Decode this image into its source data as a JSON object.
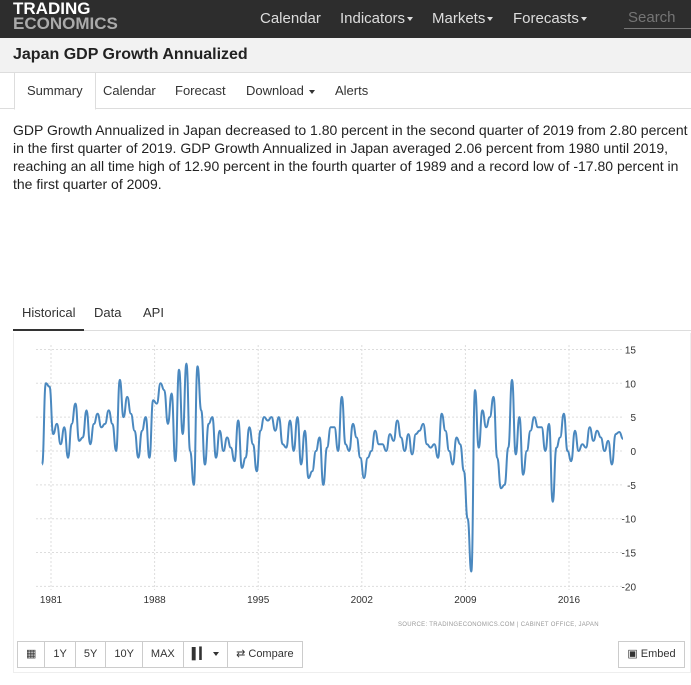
{
  "header": {
    "logo_line1": "TRADING",
    "logo_line2": "ECONOMICS",
    "nav": [
      "Calendar",
      "Indicators",
      "Markets",
      "Forecasts"
    ],
    "search_placeholder": "Search"
  },
  "page_title": "Japan GDP Growth Annualized",
  "tabs": [
    "Summary",
    "Calendar",
    "Forecast",
    "Download",
    "Alerts"
  ],
  "description": "GDP Growth Annualized in Japan decreased to 1.80 percent in the second quarter of 2019 from 2.80 percent in the first quarter of 2019. GDP Growth Annualized in Japan averaged 2.06 percent from 1980 until 2019, reaching an all time high of 12.90 percent in the fourth quarter of 1989 and a record low of -17.80 percent in the first quarter of 2009.",
  "subtabs": [
    "Historical",
    "Data",
    "API"
  ],
  "source": "SOURCE: TRADINGECONOMICS.COM | CABINET OFFICE, JAPAN",
  "buttons": {
    "y1": "1Y",
    "y5": "5Y",
    "y10": "10Y",
    "max": "MAX",
    "compare": "Compare",
    "embed": "Embed"
  },
  "colors": {
    "line": "#4a88bf",
    "topbar": "#2d2d2d"
  },
  "chart_data": {
    "type": "line",
    "title": "Japan GDP Growth Annualized",
    "start": "1980Q1",
    "frequency": "quarterly",
    "x_ticks": [
      "1981",
      "1988",
      "1995",
      "2002",
      "2009",
      "2016"
    ],
    "y_ticks": [
      15,
      10,
      5,
      0,
      -5,
      -10,
      -15,
      -20
    ],
    "ylim": [
      -20,
      15
    ],
    "grid": true,
    "values": [
      -2,
      10,
      9.5,
      2.5,
      4,
      1,
      3.5,
      -1,
      4,
      7,
      1.5,
      2,
      6,
      1,
      4,
      5.5,
      3.5,
      4,
      6,
      4,
      0,
      10.5,
      5,
      8,
      5.5,
      3,
      -1,
      3,
      5,
      -1,
      7.5,
      7,
      10,
      9,
      4,
      8.5,
      -1.5,
      12,
      2.5,
      12.9,
      0,
      -5,
      12.5,
      6,
      -2,
      4,
      5,
      -1,
      3,
      0,
      2,
      0.5,
      -1.5,
      4.5,
      -2.5,
      -1,
      3.5,
      1,
      -3,
      3,
      5,
      4.5,
      5,
      3,
      5,
      1,
      0.5,
      4.5,
      0,
      5,
      -2,
      3,
      -4,
      -3,
      0,
      2,
      -5,
      0.5,
      3.5,
      3.5,
      0,
      8,
      1,
      0,
      4,
      2,
      -1,
      -4,
      -1,
      0,
      3,
      1,
      1,
      0,
      2.5,
      1.5,
      4.5,
      2,
      0,
      2.5,
      -0.5,
      2.5,
      3,
      4,
      1,
      0.5,
      1,
      -1,
      5.5,
      3,
      0,
      -2,
      2,
      1,
      -3,
      -10,
      -17.8,
      9,
      0.5,
      6,
      3.5,
      5,
      8,
      -1,
      -5.5,
      -5,
      0.5,
      10.5,
      -0.5,
      5,
      -3.5,
      0,
      3,
      5,
      3.5,
      3.5,
      0,
      4,
      -7.5,
      0.5,
      2,
      5.5,
      0,
      -1.5,
      3,
      0,
      1,
      0.5,
      3.5,
      1.5,
      3,
      2,
      0,
      1.5,
      -2,
      2.5,
      2.8,
      1.8
    ]
  }
}
